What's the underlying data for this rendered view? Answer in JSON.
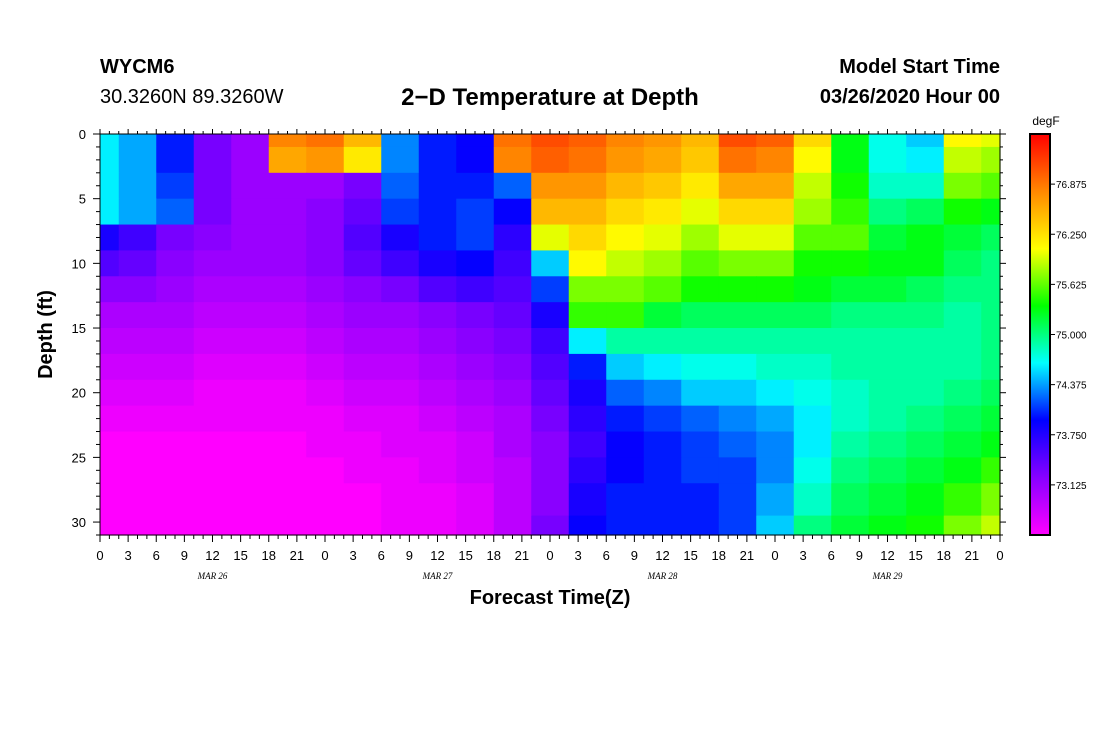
{
  "header": {
    "station": "WYCM6",
    "coords": "30.3260N 89.3260W",
    "title": "2−D Temperature at Depth",
    "start_label": "Model Start Time",
    "start_value": "03/26/2020 Hour 00"
  },
  "chart_data": {
    "type": "heatmap",
    "xlabel": "Forecast Time(Z)",
    "ylabel": "Depth (ft)",
    "x_ticks": [
      "0",
      "3",
      "6",
      "9",
      "12",
      "15",
      "18",
      "21",
      "0",
      "3",
      "6",
      "9",
      "12",
      "15",
      "18",
      "21",
      "0",
      "3",
      "6",
      "9",
      "12",
      "15",
      "18",
      "21",
      "0",
      "3",
      "6",
      "9",
      "12",
      "15",
      "18",
      "21",
      "0"
    ],
    "day_labels": [
      {
        "label": "MAR 26",
        "hour": 12
      },
      {
        "label": "MAR 27",
        "hour": 36
      },
      {
        "label": "MAR 28",
        "hour": 60
      },
      {
        "label": "MAR 29",
        "hour": 84
      }
    ],
    "xlim": [
      0,
      96
    ],
    "ylim": [
      0,
      31
    ],
    "y_ticks": [
      0,
      5,
      10,
      15,
      20,
      25,
      30
    ],
    "y_inverted": true,
    "colorbar": {
      "unit": "degF",
      "min": 72.5,
      "max": 77.5,
      "labels": [
        "76.875",
        "76.250",
        "75.625",
        "75.000",
        "74.375",
        "73.750",
        "73.125"
      ],
      "colors": [
        "#ff00ff",
        "#8800ff",
        "#0000ff",
        "#00ffff",
        "#00ff00",
        "#ffff00",
        "#ff8800",
        "#ff0000"
      ]
    },
    "depths": [
      0,
      2,
      4,
      6,
      8,
      10,
      12,
      14,
      16,
      18,
      20,
      22,
      24,
      26,
      28,
      31
    ],
    "hours": [
      0,
      4,
      8,
      12,
      16,
      20,
      24,
      28,
      32,
      36,
      40,
      44,
      48,
      52,
      56,
      60,
      64,
      68,
      72,
      76,
      80,
      84,
      88,
      92,
      96
    ],
    "values": [
      [
        74.6,
        74.4,
        74.0,
        73.3,
        73.1,
        76.8,
        76.9,
        76.5,
        74.3,
        74.0,
        73.9,
        76.9,
        77.1,
        77.0,
        76.8,
        76.7,
        76.5,
        77.1,
        77.0,
        76.3,
        75.3,
        74.7,
        74.5,
        76.1,
        76.0
      ],
      [
        74.6,
        74.4,
        74.0,
        73.3,
        73.1,
        76.6,
        76.7,
        76.2,
        74.3,
        74.0,
        73.9,
        76.8,
        77.0,
        76.9,
        76.7,
        76.6,
        76.4,
        76.9,
        76.8,
        76.1,
        75.3,
        74.7,
        74.6,
        75.9,
        75.8
      ],
      [
        74.6,
        74.4,
        74.1,
        73.3,
        73.1,
        73.1,
        73.1,
        73.3,
        74.2,
        74.0,
        74.0,
        74.2,
        76.7,
        76.7,
        76.5,
        76.4,
        76.2,
        76.6,
        76.6,
        75.9,
        75.4,
        74.8,
        74.8,
        75.7,
        75.6
      ],
      [
        74.6,
        74.4,
        74.2,
        73.3,
        73.1,
        73.1,
        73.2,
        73.4,
        74.1,
        74.0,
        74.1,
        73.9,
        76.5,
        76.5,
        76.3,
        76.2,
        76.0,
        76.3,
        76.3,
        75.8,
        75.5,
        75.0,
        75.1,
        75.4,
        75.3
      ],
      [
        73.8,
        73.6,
        73.3,
        73.2,
        73.1,
        73.1,
        73.2,
        73.5,
        73.8,
        74.0,
        74.1,
        73.7,
        76.0,
        76.3,
        76.1,
        76.0,
        75.8,
        76.0,
        76.0,
        75.6,
        75.6,
        75.2,
        75.3,
        75.2,
        75.1
      ],
      [
        73.5,
        73.4,
        73.2,
        73.1,
        73.1,
        73.1,
        73.2,
        73.4,
        73.6,
        73.8,
        73.9,
        73.6,
        74.5,
        76.1,
        75.9,
        75.8,
        75.6,
        75.7,
        75.7,
        75.4,
        75.4,
        75.3,
        75.3,
        75.1,
        75.0
      ],
      [
        73.2,
        73.2,
        73.1,
        73.0,
        73.0,
        73.0,
        73.1,
        73.2,
        73.3,
        73.5,
        73.6,
        73.5,
        74.1,
        75.7,
        75.7,
        75.6,
        75.4,
        75.4,
        75.4,
        75.3,
        75.2,
        75.2,
        75.1,
        75.0,
        75.0
      ],
      [
        73.0,
        73.0,
        73.0,
        72.9,
        72.9,
        72.9,
        73.0,
        73.1,
        73.1,
        73.2,
        73.3,
        73.4,
        73.8,
        75.5,
        75.5,
        75.2,
        75.1,
        75.1,
        75.1,
        75.1,
        75.0,
        75.0,
        75.0,
        74.9,
        75.0
      ],
      [
        72.9,
        72.9,
        72.9,
        72.8,
        72.8,
        72.8,
        72.9,
        73.0,
        73.0,
        73.1,
        73.2,
        73.3,
        73.6,
        74.6,
        74.9,
        74.9,
        74.9,
        74.9,
        74.9,
        74.9,
        74.9,
        74.9,
        74.9,
        74.9,
        75.0
      ],
      [
        72.8,
        72.8,
        72.8,
        72.7,
        72.7,
        72.7,
        72.8,
        72.9,
        72.9,
        73.0,
        73.1,
        73.2,
        73.5,
        74.0,
        74.5,
        74.6,
        74.7,
        74.7,
        74.8,
        74.8,
        74.9,
        74.9,
        74.9,
        74.9,
        75.0
      ],
      [
        72.7,
        72.7,
        72.7,
        72.6,
        72.6,
        72.6,
        72.7,
        72.8,
        72.8,
        72.9,
        73.0,
        73.1,
        73.4,
        73.8,
        74.2,
        74.3,
        74.5,
        74.5,
        74.6,
        74.7,
        74.8,
        74.9,
        74.9,
        75.0,
        75.1
      ],
      [
        72.6,
        72.6,
        72.6,
        72.6,
        72.6,
        72.6,
        72.6,
        72.7,
        72.7,
        72.8,
        72.9,
        73.0,
        73.3,
        73.7,
        74.0,
        74.1,
        74.2,
        74.3,
        74.4,
        74.6,
        74.8,
        74.9,
        75.0,
        75.1,
        75.2
      ],
      [
        72.5,
        72.5,
        72.5,
        72.5,
        72.5,
        72.5,
        72.6,
        72.6,
        72.7,
        72.7,
        72.8,
        73.0,
        73.2,
        73.6,
        73.9,
        74.0,
        74.1,
        74.2,
        74.3,
        74.6,
        74.9,
        75.0,
        75.1,
        75.2,
        75.3
      ],
      [
        72.4,
        72.4,
        72.4,
        72.4,
        72.5,
        72.5,
        72.5,
        72.6,
        72.6,
        72.7,
        72.8,
        72.9,
        73.2,
        73.7,
        73.9,
        74.0,
        74.1,
        74.1,
        74.3,
        74.7,
        75.0,
        75.1,
        75.2,
        75.3,
        75.5
      ],
      [
        72.3,
        72.3,
        72.4,
        72.4,
        72.4,
        72.5,
        72.5,
        72.5,
        72.6,
        72.6,
        72.7,
        72.9,
        73.2,
        73.8,
        74.0,
        74.0,
        74.0,
        74.1,
        74.4,
        74.8,
        75.1,
        75.2,
        75.3,
        75.5,
        75.7
      ],
      [
        72.3,
        72.3,
        72.3,
        72.4,
        72.4,
        72.4,
        72.5,
        72.5,
        72.6,
        72.6,
        72.7,
        72.9,
        73.3,
        73.9,
        74.0,
        74.0,
        74.0,
        74.1,
        74.5,
        75.0,
        75.2,
        75.3,
        75.4,
        75.7,
        75.9
      ]
    ]
  }
}
